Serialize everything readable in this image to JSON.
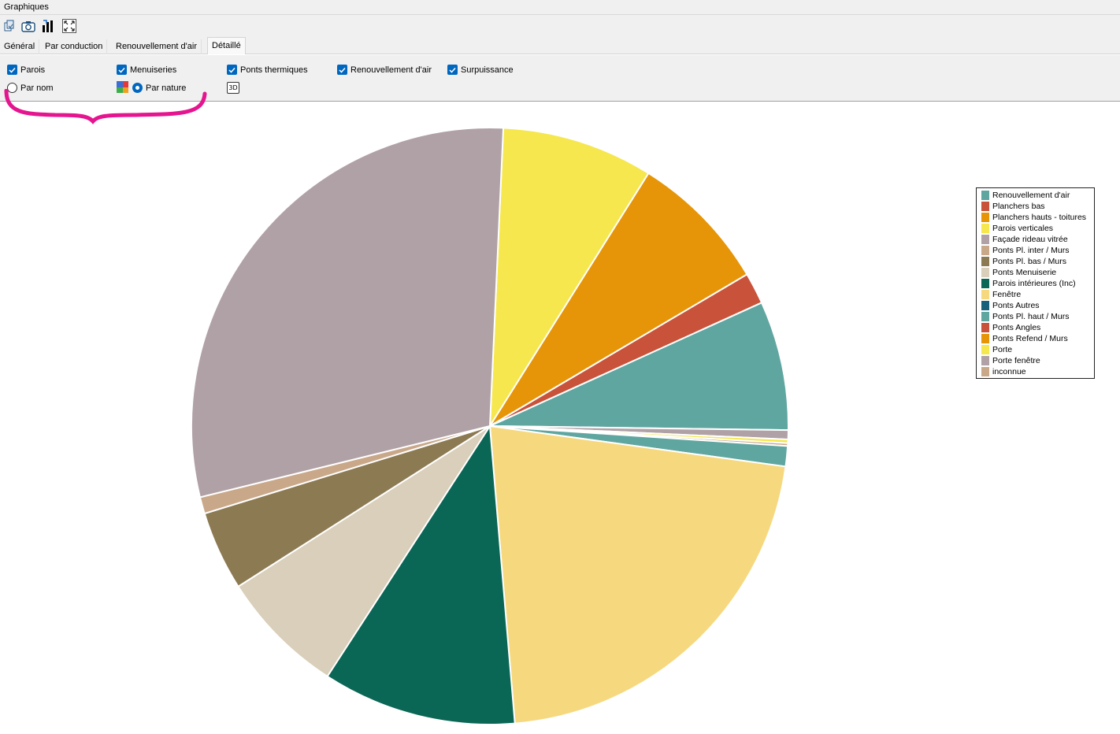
{
  "window": {
    "title": "Graphiques"
  },
  "toolbar": {
    "icons": [
      "copy-icon",
      "camera-icon",
      "chart-export-icon",
      "fullscreen-icon"
    ]
  },
  "tabs": [
    {
      "label": "Général",
      "active": false
    },
    {
      "label": "Par conduction",
      "active": false
    },
    {
      "label": "Renouvellement d'air",
      "active": false
    },
    {
      "label": "Détaillé",
      "active": true
    }
  ],
  "options": {
    "checkboxes": [
      {
        "label": "Parois",
        "checked": true
      },
      {
        "label": "Menuiseries",
        "checked": true
      },
      {
        "label": "Ponts thermiques",
        "checked": true
      },
      {
        "label": "Renouvellement d'air",
        "checked": true
      },
      {
        "label": "Surpuissance",
        "checked": true
      }
    ],
    "radios": [
      {
        "label": "Par nom",
        "selected": false
      },
      {
        "label": "Par nature",
        "selected": true
      }
    ],
    "button_3d": "3D"
  },
  "colors": {
    "accent": "#0067c0",
    "annotation": "#e5158f"
  },
  "chart_data": {
    "type": "pie",
    "legend_position": "right",
    "slices": [
      {
        "label": "Parois verticales",
        "value": 8.2,
        "color": "#f5e74d"
      },
      {
        "label": "Planchers hauts - toitures",
        "value": 7.6,
        "color": "#e69508"
      },
      {
        "label": "Planchers bas",
        "value": 1.7,
        "color": "#c8533a"
      },
      {
        "label": "Renouvellement d'air",
        "value": 7.0,
        "color": "#5fa6a1"
      },
      {
        "label": "Façade rideau vitrée",
        "value": 0.5,
        "color": "#b0a1a6"
      },
      {
        "label": "Porte",
        "value": 0.2,
        "color": "#f5e74d"
      },
      {
        "label": "Ponts Pl. inter / Murs",
        "value": 0.15,
        "color": "#c9a88a"
      },
      {
        "label": "Ponts Pl. haut / Murs",
        "value": 1.1,
        "color": "#5fa6a1"
      },
      {
        "label": "Fenêtre",
        "value": 21.5,
        "color": "#f6d87e"
      },
      {
        "label": "Parois intérieures (Inc)",
        "value": 10.5,
        "color": "#0a6655"
      },
      {
        "label": "Ponts Menuiserie",
        "value": 6.8,
        "color": "#d9cfba"
      },
      {
        "label": "Ponts Pl. bas / Murs",
        "value": 4.3,
        "color": "#8c7a52"
      },
      {
        "label": "inconnue",
        "value": 0.9,
        "color": "#c9a88a"
      },
      {
        "label": "Porte fenêtre",
        "value": 29.55,
        "color": "#b0a1a6"
      }
    ],
    "legend": [
      {
        "label": "Renouvellement d'air",
        "color": "#5fa6a1"
      },
      {
        "label": "Planchers bas",
        "color": "#c8533a"
      },
      {
        "label": "Planchers hauts - toitures",
        "color": "#e69508"
      },
      {
        "label": "Parois verticales",
        "color": "#f5e74d"
      },
      {
        "label": "Façade rideau vitrée",
        "color": "#b0a1a6"
      },
      {
        "label": "Ponts Pl. inter / Murs",
        "color": "#c9a88a"
      },
      {
        "label": "Ponts Pl. bas / Murs",
        "color": "#8c7a52"
      },
      {
        "label": "Ponts Menuiserie",
        "color": "#d9cfba"
      },
      {
        "label": "Parois intérieures (Inc)",
        "color": "#0a6655"
      },
      {
        "label": "Fenêtre",
        "color": "#f6d87e"
      },
      {
        "label": "Ponts Autres",
        "color": "#17607a"
      },
      {
        "label": "Ponts Pl. haut / Murs",
        "color": "#5fa6a1"
      },
      {
        "label": "Ponts Angles",
        "color": "#c8533a"
      },
      {
        "label": "Ponts Refend / Murs",
        "color": "#e69508"
      },
      {
        "label": "Porte",
        "color": "#f5e74d"
      },
      {
        "label": "Porte fenêtre",
        "color": "#b0a1a6"
      },
      {
        "label": "inconnue",
        "color": "#c9a88a"
      }
    ]
  }
}
